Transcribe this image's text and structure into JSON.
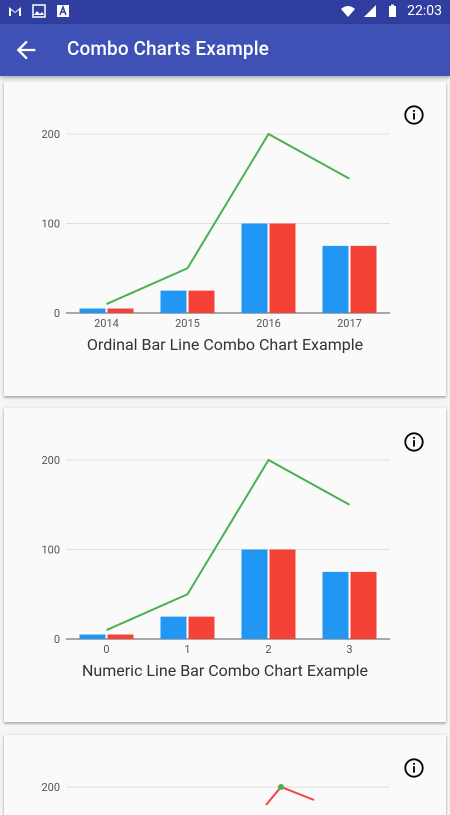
{
  "status_bar": {
    "time": "22:03",
    "icons": [
      "gmail-icon",
      "image-icon",
      "text-icon"
    ],
    "system_icons": [
      "wifi-icon",
      "signal-icon",
      "battery-icon"
    ]
  },
  "app_bar": {
    "title": "Combo Charts Example",
    "background": "#3f51b5"
  },
  "colors": {
    "series_blue": "#2196f3",
    "series_red": "#f44336",
    "series_green": "#4caf50"
  },
  "chart_data": [
    {
      "type": "bar",
      "title": "Ordinal Bar Line Combo Chart Example",
      "categories": [
        "2014",
        "2015",
        "2016",
        "2017"
      ],
      "ylim": [
        0,
        200
      ],
      "y_ticks": [
        "0",
        "100",
        "200"
      ],
      "series": [
        {
          "type": "bar",
          "values": [
            5,
            25,
            100,
            75
          ]
        },
        {
          "type": "bar",
          "values": [
            5,
            25,
            100,
            75
          ]
        },
        {
          "type": "line",
          "values": [
            10,
            50,
            200,
            150
          ]
        }
      ]
    },
    {
      "type": "bar",
      "title": "Numeric Line Bar Combo Chart Example",
      "categories": [
        "0",
        "1",
        "2",
        "3"
      ],
      "ylim": [
        0,
        200
      ],
      "y_ticks": [
        "0",
        "100",
        "200"
      ],
      "series": [
        {
          "type": "bar",
          "values": [
            5,
            25,
            100,
            75
          ]
        },
        {
          "type": "bar",
          "values": [
            5,
            25,
            100,
            75
          ]
        },
        {
          "type": "line",
          "values": [
            10,
            50,
            200,
            150
          ]
        }
      ]
    },
    {
      "type": "line",
      "title": "",
      "ylim": [
        0,
        200
      ],
      "y_ticks": [
        "200"
      ],
      "series": []
    }
  ]
}
